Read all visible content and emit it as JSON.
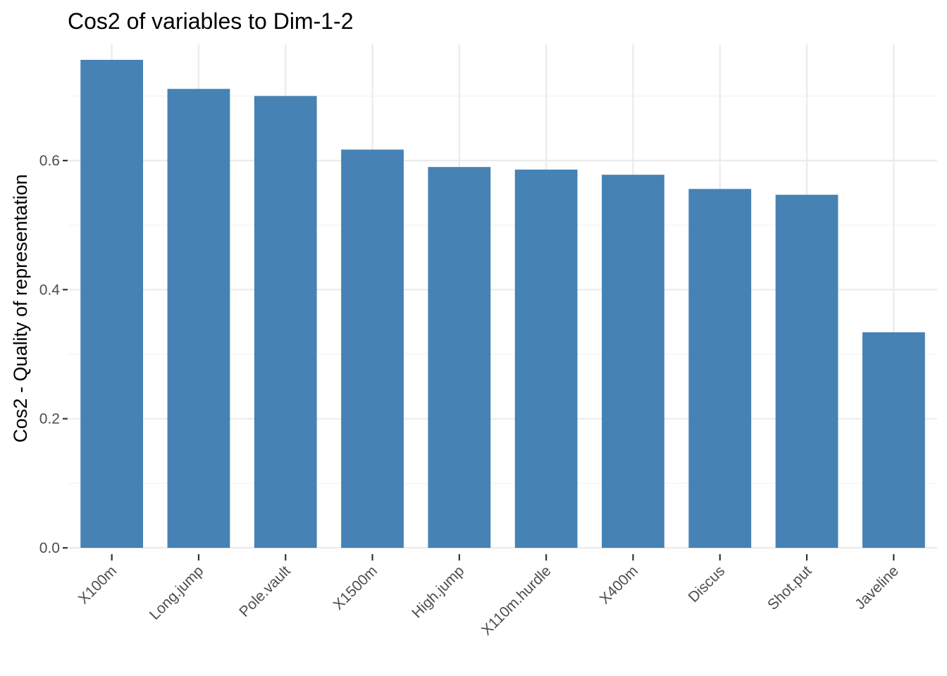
{
  "chart_data": {
    "type": "bar",
    "title": "Cos2 of variables to Dim-1-2",
    "xlabel": "",
    "ylabel": "Cos2 - Quality of representation",
    "categories": [
      "X100m",
      "Long.jump",
      "Pole.vault",
      "X1500m",
      "High.jump",
      "X110m.hurdle",
      "X400m",
      "Discus",
      "Shot.put",
      "Javeline"
    ],
    "values": [
      0.756,
      0.711,
      0.7,
      0.617,
      0.59,
      0.586,
      0.578,
      0.556,
      0.547,
      0.334
    ],
    "ylim": [
      0,
      0.78
    ],
    "yticks": [
      0.0,
      0.2,
      0.4,
      0.6
    ],
    "ytick_labels": [
      "0.0",
      "0.2",
      "0.4",
      "0.6"
    ],
    "bar_color": "#4682B4",
    "grid": true,
    "legend": "none"
  }
}
